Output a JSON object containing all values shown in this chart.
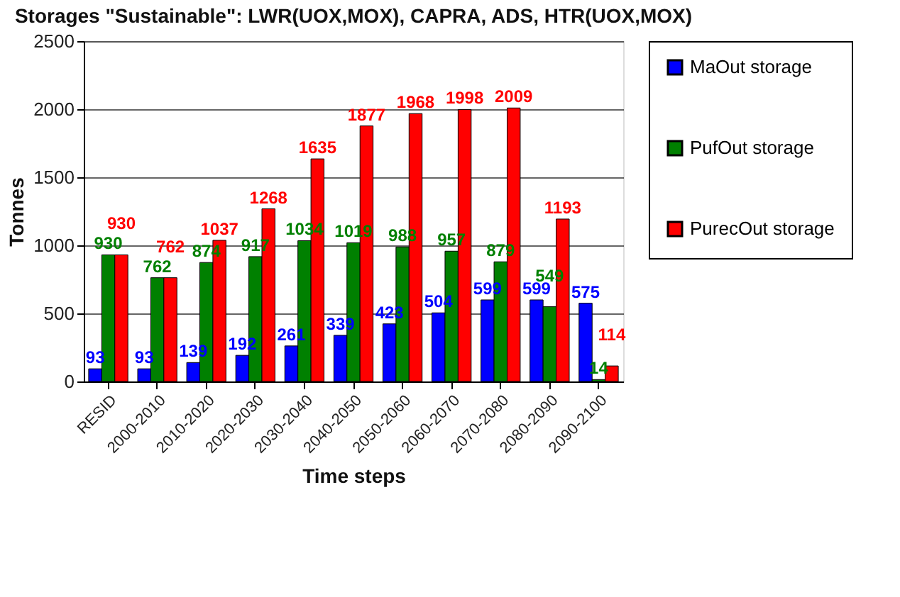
{
  "chart_data": {
    "type": "bar",
    "title": "Storages \"Sustainable\": LWR(UOX,MOX), CAPRA, ADS, HTR(UOX,MOX)",
    "xlabel": "Time steps",
    "ylabel": "Tonnes",
    "categories": [
      "RESID",
      "2000-2010",
      "2010-2020",
      "2020-2030",
      "2030-2040",
      "2040-2050",
      "2050-2060",
      "2060-2070",
      "2070-2080",
      "2080-2090",
      "2090-2100"
    ],
    "series": [
      {
        "name": "MaOut storage",
        "color": "#0000ff",
        "values": [
          93,
          93,
          139,
          192,
          261,
          339,
          423,
          504,
          599,
          599,
          575
        ]
      },
      {
        "name": "PufOut storage",
        "color": "#008000",
        "values": [
          930,
          762,
          874,
          917,
          1034,
          1019,
          988,
          957,
          879,
          549,
          14
        ]
      },
      {
        "name": "PurecOut storage",
        "color": "#ff0000",
        "values": [
          930,
          762,
          1037,
          1268,
          1635,
          1877,
          1968,
          1998,
          2009,
          1193,
          114
        ]
      }
    ],
    "ylim": [
      0,
      2500
    ],
    "yticks": [
      0,
      500,
      1000,
      1500,
      2000,
      2500
    ],
    "grid": "y",
    "legend": "right",
    "data_labels": true
  }
}
